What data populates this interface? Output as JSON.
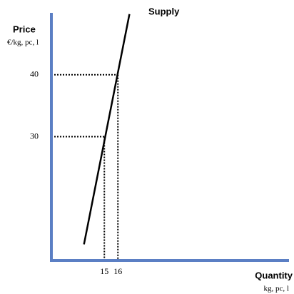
{
  "chart_data": {
    "type": "line",
    "title": "Supply",
    "ylabel": "Price",
    "yunit": "€/kg, pc, l",
    "xlabel": "Quantity",
    "xunit": "kg, pc, l",
    "series": [
      {
        "name": "Supply",
        "color": "#000000",
        "x": [
          13.5,
          16.85
        ],
        "values": [
          12.6,
          49.8
        ]
      }
    ],
    "xlim": [
      11.1,
      28.6
    ],
    "ylim": [
      10,
      50
    ],
    "xticks": [
      15,
      16
    ],
    "yticks": [
      30,
      40
    ],
    "axis_color": "#5b7fc4",
    "grid": false
  }
}
